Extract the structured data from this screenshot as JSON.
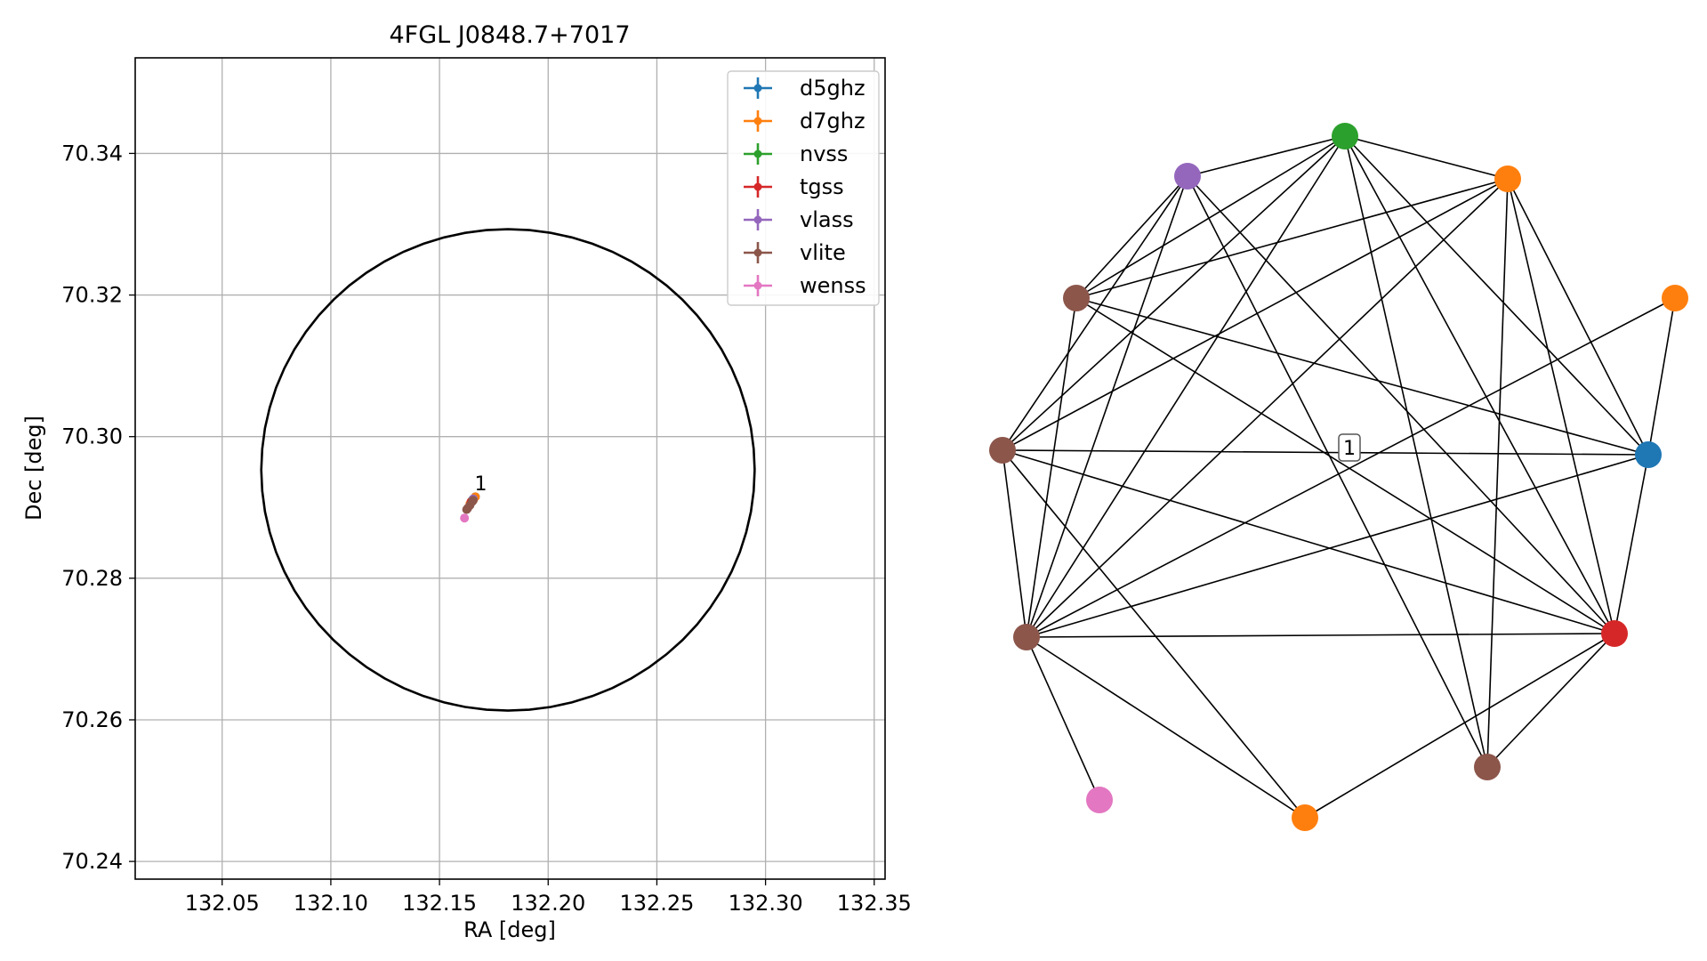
{
  "chart_data": [
    {
      "type": "scatter",
      "title": "4FGL J0848.7+7017",
      "xlabel": "RA [deg]",
      "ylabel": "Dec [deg]",
      "xlim": [
        132.01,
        132.355
      ],
      "ylim": [
        70.2375,
        70.3535
      ],
      "xticks": [
        132.05,
        132.1,
        132.15,
        132.2,
        132.25,
        132.3,
        132.35
      ],
      "xtick_labels": [
        "132.05",
        "132.10",
        "132.15",
        "132.20",
        "132.25",
        "132.30",
        "132.35"
      ],
      "yticks": [
        70.24,
        70.26,
        70.28,
        70.3,
        70.32,
        70.34
      ],
      "ytick_labels": [
        "70.24",
        "70.26",
        "70.28",
        "70.30",
        "70.32",
        "70.34"
      ],
      "grid": true,
      "legend_position": "upper-right",
      "ellipse": {
        "center_ra": 132.1815,
        "center_dec": 70.2953,
        "half_width_ra": 0.1135,
        "half_height_dec": 0.034,
        "color": "#000000"
      },
      "series": [
        {
          "name": "d5ghz",
          "color": "#1f77b4",
          "points": [
            {
              "ra": 132.1665,
              "dec": 70.2915
            }
          ]
        },
        {
          "name": "d7ghz",
          "color": "#ff7f0e",
          "points": [
            {
              "ra": 132.1665,
              "dec": 70.2915
            },
            {
              "ra": 132.1655,
              "dec": 70.291
            },
            {
              "ra": 132.164,
              "dec": 70.2905
            }
          ]
        },
        {
          "name": "nvss",
          "color": "#2ca02c",
          "points": [
            {
              "ra": 132.165,
              "dec": 70.291
            }
          ]
        },
        {
          "name": "tgss",
          "color": "#d62728",
          "points": [
            {
              "ra": 132.1645,
              "dec": 70.2908
            }
          ]
        },
        {
          "name": "vlass",
          "color": "#9467bd",
          "points": [
            {
              "ra": 132.1655,
              "dec": 70.2912
            }
          ]
        },
        {
          "name": "vlite",
          "color": "#8c564b",
          "points": [
            {
              "ra": 132.165,
              "dec": 70.2908
            },
            {
              "ra": 132.164,
              "dec": 70.2903
            },
            {
              "ra": 132.163,
              "dec": 70.2899
            },
            {
              "ra": 132.1625,
              "dec": 70.2897
            },
            {
              "ra": 132.1655,
              "dec": 70.291
            }
          ]
        },
        {
          "name": "wenss",
          "color": "#e377c2",
          "points": [
            {
              "ra": 132.1615,
              "dec": 70.2885
            }
          ]
        }
      ],
      "annotations": [
        {
          "text": "1",
          "ra": 132.169,
          "dec": 70.2922
        }
      ]
    },
    {
      "type": "network",
      "nodes": [
        {
          "id": "green",
          "color": "#2ca02c"
        },
        {
          "id": "purple",
          "color": "#9467bd"
        },
        {
          "id": "orange-top",
          "color": "#ff7f0e"
        },
        {
          "id": "brown-upper",
          "color": "#8c564b"
        },
        {
          "id": "orange-right",
          "color": "#ff7f0e"
        },
        {
          "id": "brown-left",
          "color": "#8c564b"
        },
        {
          "id": "blue",
          "color": "#1f77b4"
        },
        {
          "id": "brown-lower",
          "color": "#8c564b"
        },
        {
          "id": "red",
          "color": "#d62728"
        },
        {
          "id": "pink",
          "color": "#e377c2"
        },
        {
          "id": "orange-bottom",
          "color": "#ff7f0e"
        },
        {
          "id": "brown-bottom",
          "color": "#8c564b"
        }
      ],
      "edges": [
        [
          "purple",
          "green"
        ],
        [
          "purple",
          "brown-upper"
        ],
        [
          "purple",
          "brown-left"
        ],
        [
          "purple",
          "brown-lower"
        ],
        [
          "purple",
          "red"
        ],
        [
          "purple",
          "brown-bottom"
        ],
        [
          "green",
          "orange-top"
        ],
        [
          "green",
          "brown-upper"
        ],
        [
          "green",
          "brown-left"
        ],
        [
          "green",
          "brown-lower"
        ],
        [
          "green",
          "blue"
        ],
        [
          "green",
          "red"
        ],
        [
          "green",
          "brown-bottom"
        ],
        [
          "orange-top",
          "brown-upper"
        ],
        [
          "orange-top",
          "brown-left"
        ],
        [
          "orange-top",
          "brown-lower"
        ],
        [
          "orange-top",
          "blue"
        ],
        [
          "orange-top",
          "red"
        ],
        [
          "orange-top",
          "brown-bottom"
        ],
        [
          "brown-upper",
          "brown-lower"
        ],
        [
          "brown-upper",
          "blue"
        ],
        [
          "brown-upper",
          "red"
        ],
        [
          "orange-right",
          "blue"
        ],
        [
          "orange-right",
          "brown-lower"
        ],
        [
          "brown-left",
          "blue"
        ],
        [
          "brown-left",
          "red"
        ],
        [
          "brown-left",
          "orange-bottom"
        ],
        [
          "brown-left",
          "brown-lower"
        ],
        [
          "blue",
          "red"
        ],
        [
          "blue",
          "brown-lower"
        ],
        [
          "brown-lower",
          "red"
        ],
        [
          "brown-lower",
          "pink"
        ],
        [
          "brown-lower",
          "orange-bottom"
        ],
        [
          "red",
          "orange-bottom"
        ],
        [
          "red",
          "brown-bottom"
        ]
      ],
      "label": {
        "text": "1"
      }
    }
  ]
}
